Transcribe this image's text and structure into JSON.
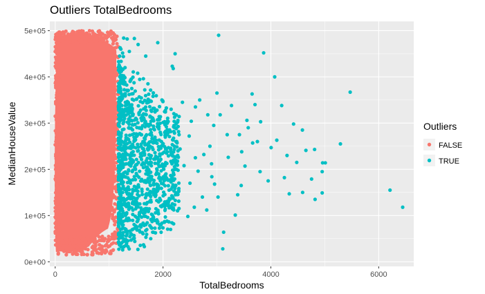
{
  "chart_data": {
    "type": "scatter",
    "title": "Outliers TotalBedrooms",
    "xlabel": "TotalBedrooms",
    "ylabel": "MedianHouseValue",
    "xlim": [
      -100,
      6650
    ],
    "ylim": [
      -10000,
      520000
    ],
    "x_ticks": [
      0,
      2000,
      4000,
      6000
    ],
    "x_tick_labels": [
      "0",
      "2000",
      "4000",
      "6000"
    ],
    "y_ticks": [
      0,
      100000,
      200000,
      300000,
      400000,
      500000
    ],
    "y_tick_labels": [
      "0e+00",
      "1e+05",
      "2e+05",
      "3e+05",
      "4e+05",
      "5e+05"
    ],
    "grid": true,
    "background": "#ebebeb",
    "legend": {
      "title": "Outliers",
      "position": "right",
      "entries": [
        {
          "label": "FALSE",
          "color": "#f8766d"
        },
        {
          "label": "TRUE",
          "color": "#00bfc4"
        }
      ]
    },
    "series": [
      {
        "name": "FALSE",
        "color": "#f8766d",
        "density": {
          "x_range": [
            0,
            1173
          ],
          "y_range": [
            14999,
            500001
          ],
          "x_mode": 350,
          "y_mode": 180000
        }
      },
      {
        "name": "TRUE",
        "color": "#00bfc4",
        "points": [
          [
            6445,
            118000
          ],
          [
            6210,
            155000
          ],
          [
            5471,
            367000
          ],
          [
            5290,
            255000
          ],
          [
            4952,
            195000
          ],
          [
            4952,
            149000
          ],
          [
            5010,
            214000
          ],
          [
            4960,
            214000
          ],
          [
            4820,
            135000
          ],
          [
            4811,
            243000
          ],
          [
            4755,
            179000
          ],
          [
            4589,
            150000
          ],
          [
            4585,
            285000
          ],
          [
            4421,
            298000
          ],
          [
            4341,
            147000
          ],
          [
            4251,
            182000
          ],
          [
            4201,
            338000
          ],
          [
            4110,
            263000
          ],
          [
            4071,
            400000
          ],
          [
            4005,
            247000
          ],
          [
            3866,
            452000
          ],
          [
            3810,
            303000
          ],
          [
            3706,
            340000
          ],
          [
            3652,
            363000
          ],
          [
            3662,
            257000
          ],
          [
            3556,
            306000
          ],
          [
            3520,
            207000
          ],
          [
            3459,
            238000
          ],
          [
            3417,
            275000
          ],
          [
            3385,
            145000
          ],
          [
            3210,
            226000
          ],
          [
            3124,
            64000
          ],
          [
            3108,
            28000
          ],
          [
            3031,
            490000
          ],
          [
            2956,
            168000
          ],
          [
            2905,
            184000
          ],
          [
            2811,
            112000
          ],
          [
            2757,
            232000
          ],
          [
            2650,
            196000
          ],
          [
            2601,
            335000
          ],
          [
            2524,
            304000
          ],
          [
            2485,
            272000
          ],
          [
            2316,
            244000
          ],
          [
            2290,
            154000
          ],
          [
            2224,
            450000
          ],
          [
            2189,
            418000
          ],
          [
            2171,
            423000
          ],
          [
            2150,
            330000
          ],
          [
            2037,
            122000
          ],
          [
            1949,
            280000
          ],
          [
            1902,
            474000
          ],
          [
            1852,
            213000
          ],
          [
            1823,
            95000
          ],
          [
            1815,
            358000
          ],
          [
            1808,
            64000
          ],
          [
            1772,
            50000
          ],
          [
            1701,
            115000
          ],
          [
            1679,
            445000
          ],
          [
            1650,
            240000
          ],
          [
            1591,
            275000
          ],
          [
            1538,
            470000
          ],
          [
            1511,
            352000
          ],
          [
            1468,
            483000
          ],
          [
            1425,
            305000
          ],
          [
            1402,
            250000
          ],
          [
            1375,
            455000
          ],
          [
            1354,
            162000
          ],
          [
            1335,
            482000
          ],
          [
            1295,
            420000
          ],
          [
            1270,
            484000
          ],
          [
            1242,
            395000
          ],
          [
            1218,
            460000
          ],
          [
            1196,
            445000
          ],
          [
            2680,
            350000
          ],
          [
            2830,
            318000
          ],
          [
            2940,
            295000
          ],
          [
            3000,
            365000
          ],
          [
            3060,
            318000
          ],
          [
            3270,
            338000
          ],
          [
            3580,
            290000
          ],
          [
            3750,
            260000
          ],
          [
            3950,
            175000
          ],
          [
            4480,
            215000
          ],
          [
            4650,
            241000
          ],
          [
            3340,
            101000
          ],
          [
            2580,
            118000
          ],
          [
            2730,
            140000
          ],
          [
            2390,
            208000
          ],
          [
            2460,
            98000
          ],
          [
            2140,
            70000
          ],
          [
            2020,
            175000
          ],
          [
            1980,
            350000
          ],
          [
            1760,
            315000
          ],
          [
            1720,
            385000
          ],
          [
            1610,
            175000
          ],
          [
            1560,
            68000
          ],
          [
            1490,
            200000
          ],
          [
            1445,
            130000
          ],
          [
            1410,
            395000
          ],
          [
            1380,
            90000
          ],
          [
            1290,
            45000
          ],
          [
            1250,
            150000
          ],
          [
            1225,
            350000
          ],
          [
            1205,
            230000
          ],
          [
            1185,
            300000
          ],
          [
            1190,
            120000
          ],
          [
            1560,
            290000
          ],
          [
            2240,
            260000
          ],
          [
            2870,
            250000
          ],
          [
            3190,
            275000
          ],
          [
            2360,
            345000
          ],
          [
            2900,
            212000
          ],
          [
            3450,
            165000
          ],
          [
            2600,
            225000
          ],
          [
            1870,
            150000
          ],
          [
            1930,
            245000
          ],
          [
            2080,
            300000
          ],
          [
            2500,
            170000
          ],
          [
            1680,
            205000
          ],
          [
            1760,
            250000
          ],
          [
            3020,
            140000
          ],
          [
            3800,
            195000
          ],
          [
            4300,
            230000
          ],
          [
            2140,
            120000
          ]
        ],
        "cloud": {
          "x_range": [
            1174,
            2300
          ],
          "y_range": [
            25000,
            500001
          ],
          "count": 1100
        }
      }
    ]
  }
}
